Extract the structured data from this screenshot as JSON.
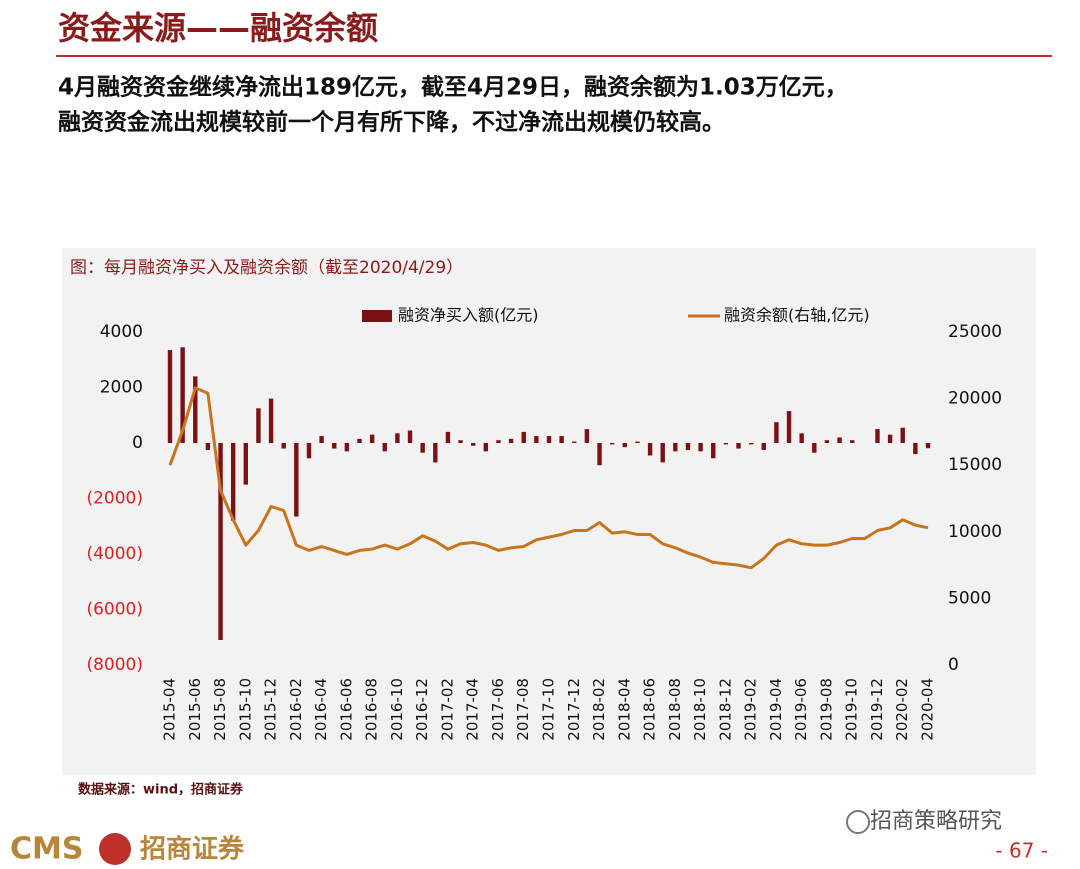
{
  "header": {
    "title": "资金来源——融资余额",
    "text": [
      "4月融资资金继续净流出189亿元，截至4月29日，融资余额为1.03万亿元，",
      "融资资金流出规模较前一个月有所下降，不过净流出规模仍较高。"
    ]
  },
  "chart_data": {
    "type": "bar_line",
    "title": "图：每月融资净买入及融资余额（截至2020/4/29）",
    "categories": [
      "2015-04",
      null,
      "2015-06",
      null,
      "2015-08",
      null,
      "2015-10",
      null,
      "2015-12",
      null,
      "2016-02",
      null,
      "2016-04",
      null,
      "2016-06",
      null,
      "2016-08",
      null,
      "2016-10",
      null,
      "2016-12",
      null,
      "2017-02",
      null,
      "2017-04",
      null,
      "2017-06",
      null,
      "2017-08",
      null,
      "2017-10",
      null,
      "2017-12",
      null,
      "2018-02",
      null,
      "2018-04",
      null,
      "2018-06",
      null,
      "2018-08",
      null,
      "2018-10",
      null,
      "2018-12",
      null,
      "2019-02",
      null,
      "2019-04",
      null,
      "2019-06",
      null,
      "2019-08",
      null,
      "2019-10",
      null,
      "2019-12",
      null,
      "2020-02",
      null,
      "2020-04"
    ],
    "series": [
      {
        "name": "融资净买入额(亿元)",
        "color": "#7b1113",
        "kind": "bar",
        "values": [
          3350,
          3450,
          2400,
          -250,
          -7100,
          -2800,
          -1500,
          1250,
          1600,
          -200,
          -2650,
          -550,
          250,
          -200,
          -300,
          150,
          300,
          -300,
          350,
          450,
          -350,
          -700,
          400,
          100,
          -100,
          -300,
          100,
          150,
          400,
          250,
          250,
          250,
          50,
          500,
          -800,
          -50,
          -150,
          50,
          -450,
          -700,
          -300,
          -250,
          -300,
          -550,
          -50,
          -200,
          -50,
          -250,
          750,
          1150,
          350,
          -350,
          100,
          200,
          100,
          0,
          500,
          300,
          550,
          -400,
          -189
        ]
      },
      {
        "name": "融资余额(右轴,亿元)",
        "color": "#c8741c",
        "kind": "line",
        "axis": "y2",
        "values": [
          15000,
          17600,
          20800,
          20400,
          13100,
          10900,
          9000,
          10100,
          11900,
          11600,
          9000,
          8600,
          8900,
          8600,
          8300,
          8600,
          8700,
          9000,
          8700,
          9100,
          9700,
          9300,
          8700,
          9100,
          9200,
          9000,
          8600,
          8800,
          8900,
          9400,
          9600,
          9800,
          10100,
          10100,
          10700,
          9900,
          10000,
          9800,
          9800,
          9100,
          8800,
          8400,
          8100,
          7700,
          7600,
          7500,
          7300,
          8000,
          9000,
          9400,
          9100,
          9000,
          9000,
          9200,
          9500,
          9500,
          10100,
          10300,
          10900,
          10500,
          10300
        ]
      }
    ],
    "ylim": [
      -8000,
      4000
    ],
    "yticks": [
      {
        "value": -8000,
        "label": "(8000)"
      },
      {
        "value": -6000,
        "label": "(6000)"
      },
      {
        "value": -4000,
        "label": "(4000)"
      },
      {
        "value": -2000,
        "label": "(2000)"
      },
      0,
      2000,
      4000
    ],
    "y2lim": [
      0,
      25000
    ],
    "y2ticks": [
      0,
      5000,
      10000,
      15000,
      20000,
      25000
    ],
    "negative_tick_color": "#e02020",
    "legend": "top"
  },
  "source": "数据来源：wind，招商证券",
  "footer": {
    "logo": "CMS",
    "company": "招商证券",
    "page": "- 67 -"
  },
  "watermark": "招商策略研究"
}
